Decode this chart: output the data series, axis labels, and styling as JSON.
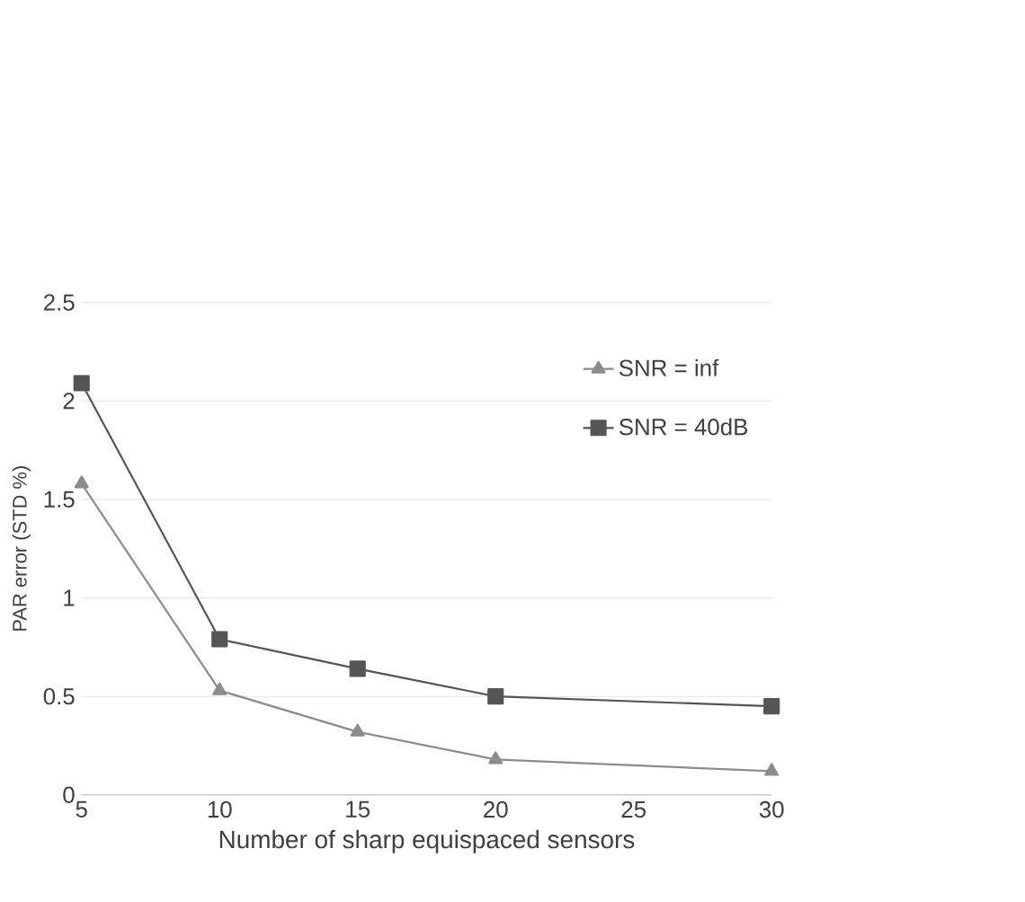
{
  "chart_data": {
    "type": "line",
    "xlabel": "Number of sharp equispaced sensors",
    "ylabel": "PAR error (STD %)",
    "x": [
      5,
      10,
      15,
      20,
      30
    ],
    "series": [
      {
        "name": "SNR = inf",
        "color": "#8c8c8c",
        "marker": "triangle",
        "values": [
          1.58,
          0.53,
          0.32,
          0.18,
          0.12
        ]
      },
      {
        "name": "SNR = 40dB",
        "color": "#555555",
        "marker": "square",
        "values": [
          2.09,
          0.79,
          0.64,
          0.5,
          0.45
        ]
      }
    ],
    "xlim": [
      5,
      30
    ],
    "xticks": [
      5,
      10,
      15,
      20,
      25,
      30
    ],
    "ylim": [
      0,
      2.5
    ],
    "yticks": [
      0,
      0.5,
      1,
      1.5,
      2,
      2.5
    ],
    "grid": "y",
    "legend": "top right",
    "line_style": "solid"
  }
}
